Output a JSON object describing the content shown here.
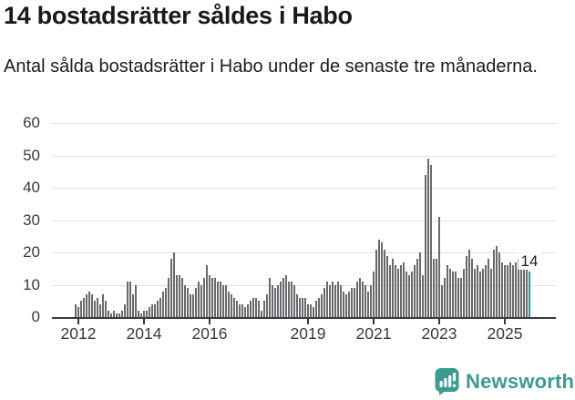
{
  "header": {
    "title": "14 bostadsrätter såldes i Habo",
    "subtitle": "Antal sålda bostadsrätter i Habo under de senaste tre månaderna."
  },
  "chart_data": {
    "type": "bar",
    "title": "14 bostadsrätter såldes i Habo",
    "subtitle": "Antal sålda bostadsrätter i Habo under de senaste tre månaderna.",
    "ylabel": "",
    "xlabel": "",
    "ylim": [
      0,
      60
    ],
    "yticks": [
      0,
      10,
      20,
      30,
      40,
      50,
      60
    ],
    "grid": "horizontal",
    "x_unit": "month",
    "x_tick_labels": [
      "2012",
      "2014",
      "2016",
      "2019",
      "2021",
      "2023",
      "2025"
    ],
    "x_tick_indices": [
      1,
      25,
      49,
      85,
      109,
      133,
      157
    ],
    "values": [
      4,
      3,
      5,
      6,
      7,
      8,
      7,
      5,
      6,
      4,
      7,
      5,
      2,
      1,
      2,
      1,
      1,
      2,
      4,
      11,
      11,
      7,
      10,
      2,
      1,
      2,
      2,
      3,
      4,
      4,
      5,
      6,
      8,
      9,
      12,
      18,
      20,
      13,
      13,
      12,
      10,
      9,
      7,
      7,
      9,
      11,
      10,
      12,
      16,
      13,
      12,
      12,
      11,
      11,
      10,
      10,
      8,
      7,
      6,
      5,
      4,
      4,
      3,
      4,
      5,
      6,
      6,
      5,
      2,
      5,
      7,
      12,
      10,
      9,
      10,
      11,
      12,
      13,
      11,
      11,
      10,
      7,
      6,
      6,
      6,
      4,
      4,
      3,
      5,
      6,
      7,
      9,
      11,
      10,
      11,
      10,
      11,
      10,
      8,
      7,
      8,
      9,
      9,
      11,
      12,
      11,
      10,
      8,
      10,
      14,
      21,
      24,
      23,
      21,
      19,
      16,
      18,
      16,
      15,
      16,
      17,
      14,
      13,
      14,
      16,
      18,
      20,
      13,
      44,
      49,
      47,
      18,
      18,
      31,
      10,
      12,
      16,
      15,
      14,
      14,
      12,
      12,
      15,
      19,
      21,
      18,
      15,
      16,
      14,
      15,
      16,
      18,
      15,
      21,
      22,
      20,
      17,
      16,
      16,
      17,
      16,
      17,
      18,
      17,
      16,
      15,
      14
    ],
    "bar_color": "#6a6a6e",
    "highlight": {
      "index": 166,
      "value": 14,
      "label": "14",
      "color": "#16a099"
    },
    "legend": "none"
  },
  "footer": {
    "brand": "Newsworthy",
    "icon": "newsworthy-logo-icon",
    "brand_color": "#3b9b91"
  }
}
